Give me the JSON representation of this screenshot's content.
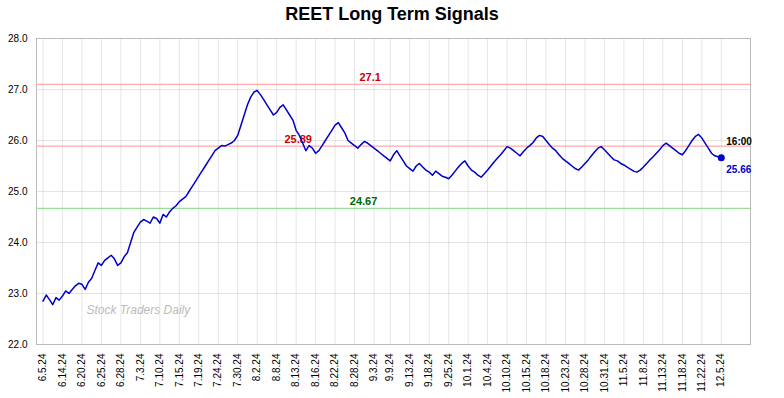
{
  "chart_data": {
    "type": "line",
    "title": "REET Long Term Signals",
    "color": "#0000cc",
    "categories": [
      "6.5.24",
      null,
      null,
      null,
      null,
      null,
      "6.14.24",
      null,
      null,
      null,
      null,
      null,
      "6.20.24",
      null,
      null,
      null,
      null,
      null,
      "6.25.24",
      null,
      null,
      null,
      null,
      null,
      "6.28.24",
      null,
      null,
      null,
      null,
      null,
      "7.3.24",
      null,
      null,
      null,
      null,
      null,
      "7.10.24",
      null,
      null,
      null,
      null,
      null,
      "7.15.24",
      null,
      null,
      null,
      null,
      null,
      "7.19.24",
      null,
      null,
      null,
      null,
      null,
      "7.24.24",
      null,
      null,
      null,
      null,
      null,
      "7.30.24",
      null,
      null,
      null,
      null,
      null,
      "8.2.24",
      null,
      null,
      null,
      null,
      null,
      "8.8.24",
      null,
      null,
      null,
      null,
      null,
      "8.13.24",
      null,
      null,
      null,
      null,
      null,
      "8.16.24",
      null,
      null,
      null,
      null,
      null,
      "8.22.24",
      null,
      null,
      null,
      null,
      null,
      "8.28.24",
      null,
      null,
      null,
      null,
      null,
      "9.3.24",
      null,
      null,
      null,
      null,
      "9.9.24",
      null,
      null,
      null,
      null,
      null,
      "9.13.24",
      null,
      null,
      null,
      null,
      null,
      "9.18.24",
      null,
      null,
      null,
      null,
      null,
      "9.25.24",
      null,
      null,
      null,
      null,
      null,
      "10.1.24",
      null,
      null,
      null,
      null,
      null,
      "10.4.24",
      null,
      null,
      null,
      null,
      null,
      "10.10.24",
      null,
      null,
      null,
      null,
      null,
      "10.15.24",
      null,
      null,
      null,
      null,
      null,
      "10.18.24",
      null,
      null,
      null,
      null,
      null,
      "10.23.24",
      null,
      null,
      null,
      null,
      null,
      "10.28.24",
      null,
      null,
      null,
      null,
      null,
      "10.31.24",
      null,
      null,
      null,
      null,
      null,
      "11.5.24",
      null,
      null,
      null,
      null,
      null,
      "11.8.24",
      null,
      null,
      null,
      null,
      null,
      "11.13.24",
      null,
      null,
      null,
      null,
      null,
      "11.18.24",
      null,
      null,
      null,
      null,
      null,
      "11.22.24",
      null,
      null,
      null,
      null,
      null,
      "12.5.24"
    ],
    "values": [
      22.85,
      22.97,
      22.88,
      22.78,
      22.92,
      22.87,
      22.95,
      23.05,
      23.0,
      23.08,
      23.15,
      23.2,
      23.18,
      23.08,
      23.22,
      23.3,
      23.45,
      23.6,
      23.55,
      23.65,
      23.7,
      23.75,
      23.68,
      23.55,
      23.6,
      23.72,
      23.8,
      24.0,
      24.2,
      24.3,
      24.4,
      24.45,
      24.42,
      24.38,
      24.5,
      24.47,
      24.38,
      24.55,
      24.5,
      24.6,
      24.67,
      24.72,
      24.8,
      24.85,
      24.9,
      25.0,
      25.1,
      25.2,
      25.3,
      25.4,
      25.5,
      25.6,
      25.7,
      25.8,
      25.85,
      25.9,
      25.89,
      25.92,
      25.95,
      26.0,
      26.1,
      26.3,
      26.5,
      26.7,
      26.85,
      26.95,
      26.98,
      26.9,
      26.8,
      26.7,
      26.6,
      26.5,
      26.55,
      26.65,
      26.7,
      26.6,
      26.5,
      26.4,
      26.2,
      26.1,
      25.95,
      25.8,
      25.9,
      25.85,
      25.75,
      25.8,
      25.9,
      26.0,
      26.1,
      26.2,
      26.3,
      26.35,
      26.25,
      26.15,
      26.0,
      25.95,
      25.9,
      25.85,
      25.92,
      25.98,
      25.95,
      25.9,
      25.85,
      25.8,
      25.75,
      25.7,
      25.65,
      25.6,
      25.72,
      25.8,
      25.7,
      25.6,
      25.5,
      25.45,
      25.4,
      25.5,
      25.55,
      25.48,
      25.42,
      25.38,
      25.32,
      25.4,
      25.35,
      25.3,
      25.28,
      25.25,
      25.32,
      25.4,
      25.48,
      25.55,
      25.6,
      25.5,
      25.42,
      25.38,
      25.32,
      25.28,
      25.35,
      25.42,
      25.5,
      25.58,
      25.65,
      25.72,
      25.8,
      25.88,
      25.85,
      25.8,
      25.75,
      25.7,
      25.78,
      25.85,
      25.9,
      25.96,
      26.05,
      26.1,
      26.08,
      26.0,
      25.92,
      25.85,
      25.8,
      25.72,
      25.65,
      25.6,
      25.55,
      25.5,
      25.45,
      25.42,
      25.48,
      25.55,
      25.62,
      25.7,
      25.78,
      25.85,
      25.88,
      25.82,
      25.75,
      25.68,
      25.62,
      25.6,
      25.55,
      25.52,
      25.48,
      25.44,
      25.4,
      25.38,
      25.42,
      25.48,
      25.55,
      25.62,
      25.68,
      25.75,
      25.82,
      25.9,
      25.95,
      25.9,
      25.85,
      25.8,
      25.75,
      25.72,
      25.8,
      25.9,
      26.0,
      26.08,
      26.12,
      26.05,
      25.95,
      25.85,
      25.75,
      25.7,
      25.68,
      25.66
    ],
    "ylim": [
      22,
      28
    ],
    "yticks": [
      22,
      23,
      24,
      25,
      26,
      27,
      28
    ],
    "grid": true,
    "reference_lines": [
      {
        "value": 27.1,
        "label": "27.1",
        "color": "#ffaaaa",
        "label_color": "#cc0000"
      },
      {
        "value": 25.89,
        "label": "25.89",
        "color": "#ffaaaa",
        "label_color": "#cc0000"
      },
      {
        "value": 24.67,
        "label": "24.67",
        "color": "#99dd99",
        "label_color": "#006600"
      }
    ],
    "annotations": [
      {
        "text": "16:00",
        "color": "#000000"
      },
      {
        "text": "25.66",
        "color": "#0000cc"
      }
    ],
    "watermark": "Stock Traders Daily"
  }
}
